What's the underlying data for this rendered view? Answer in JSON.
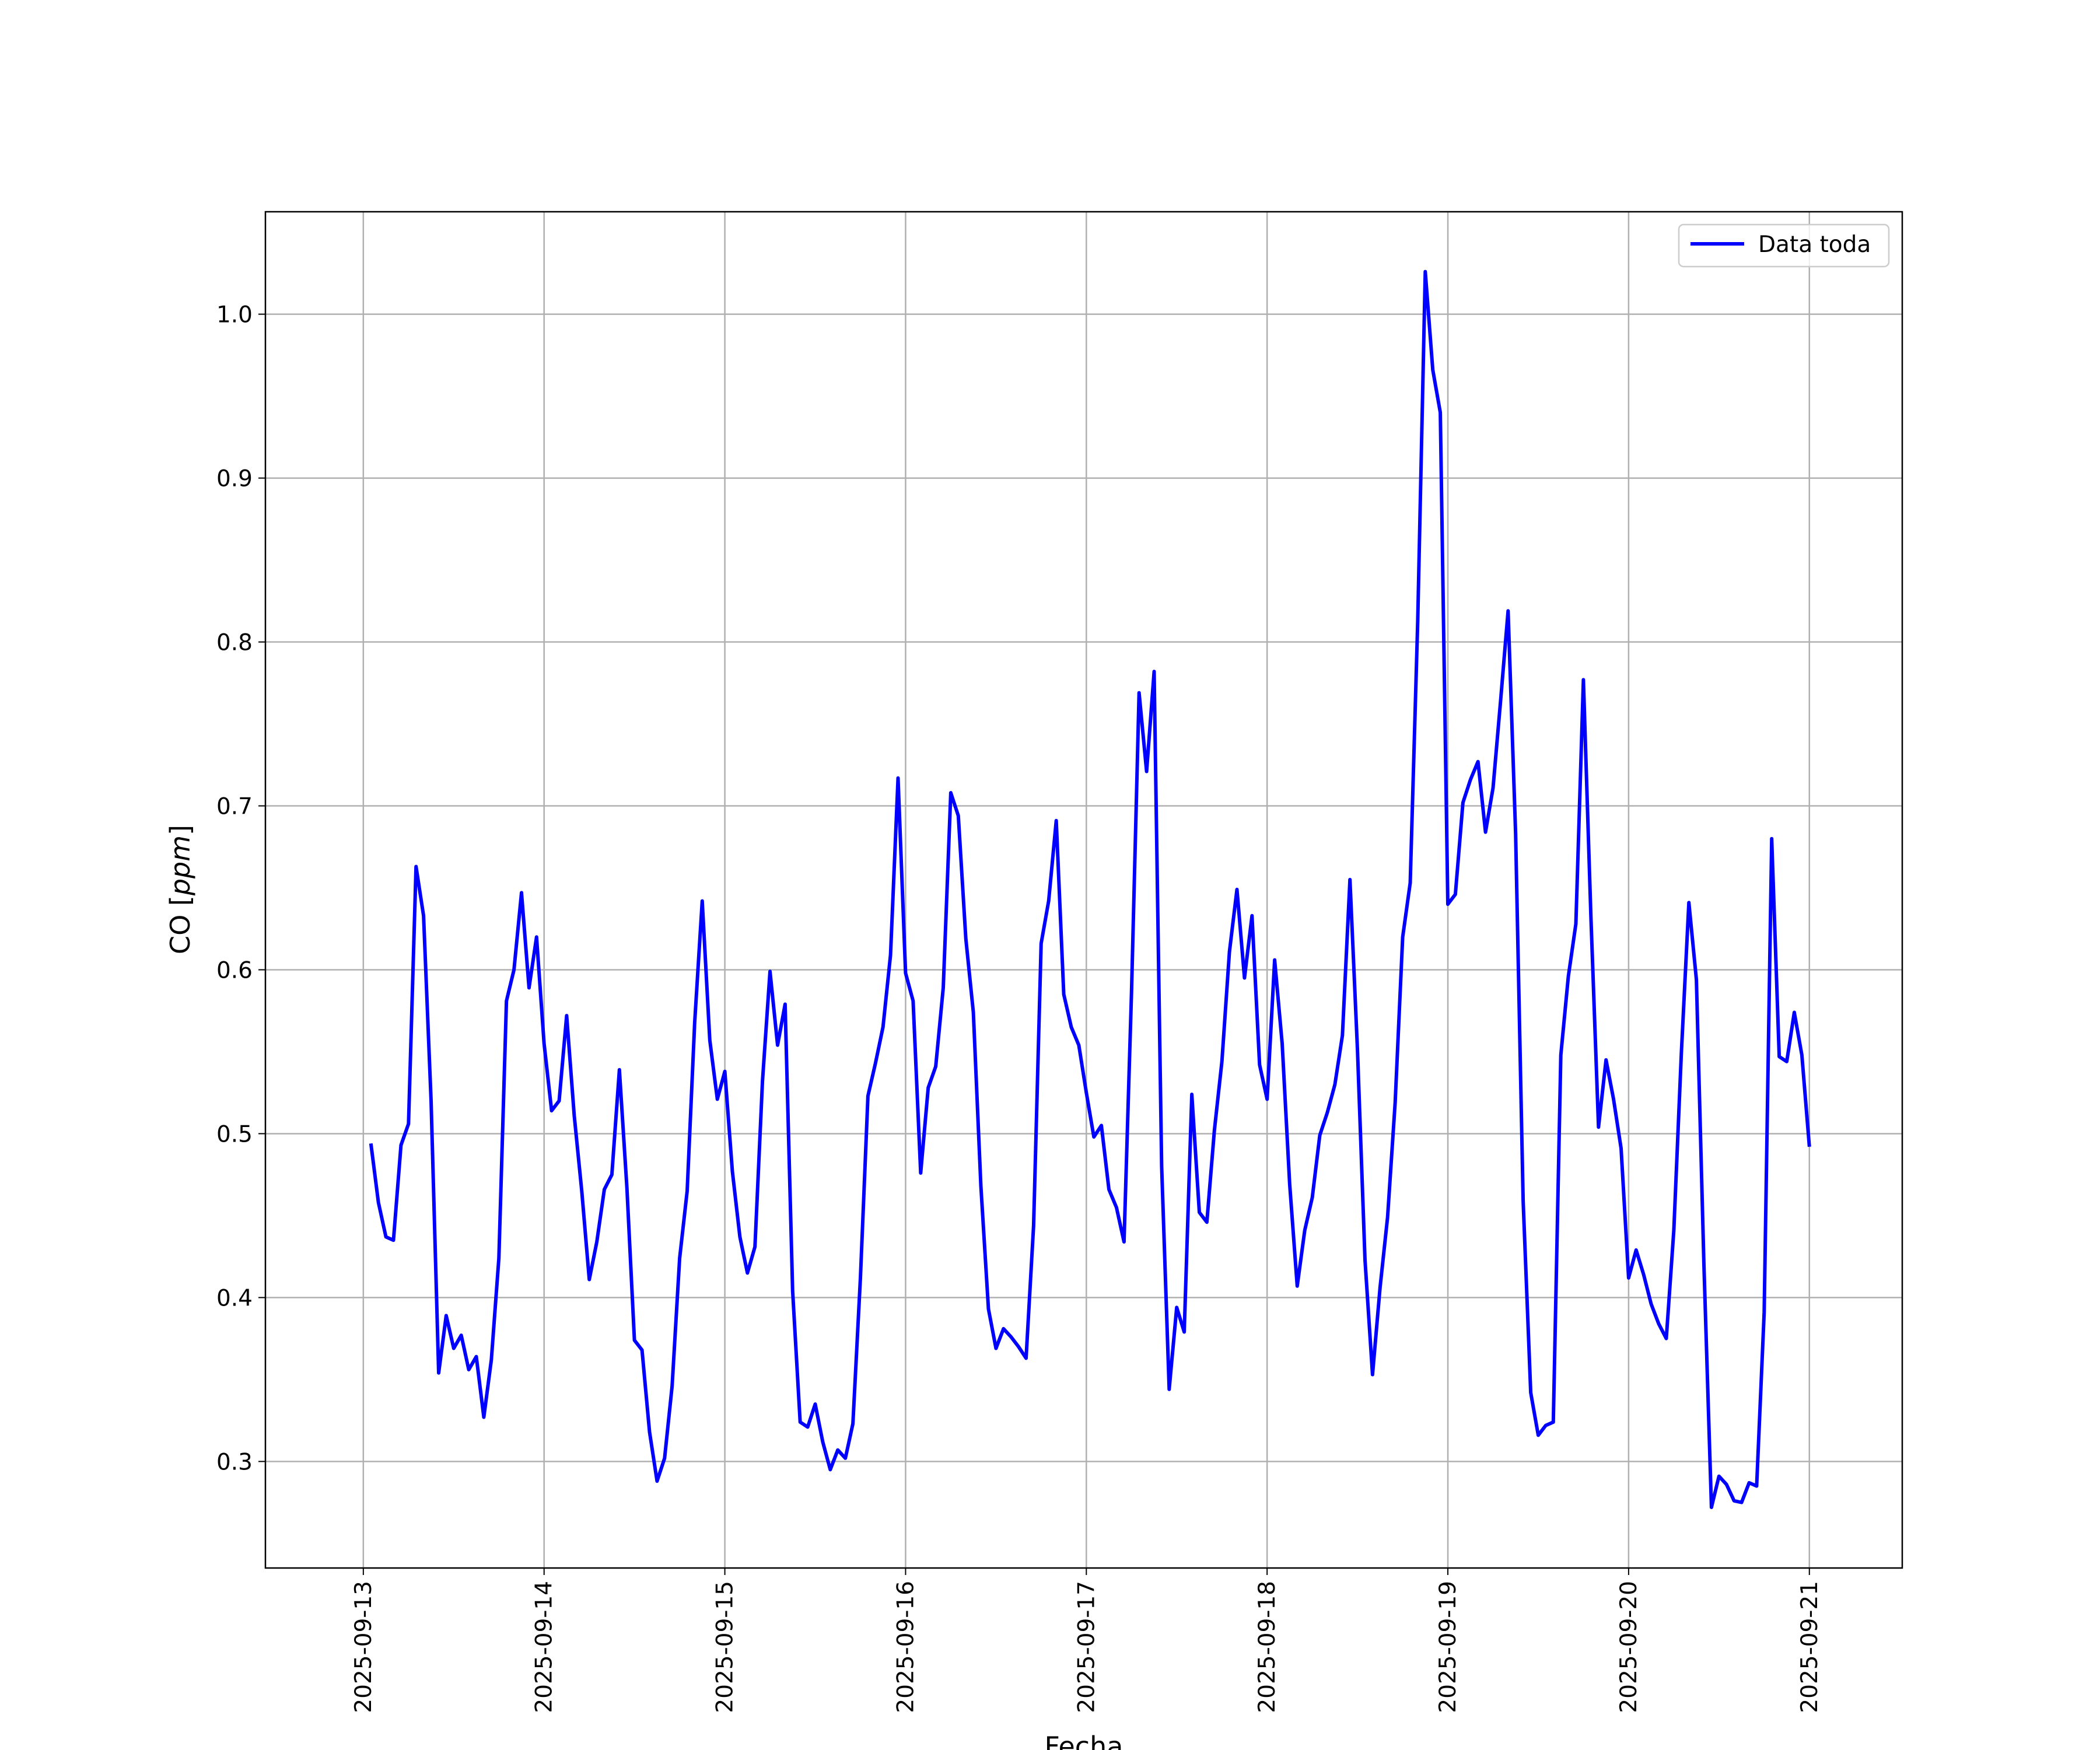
{
  "chart_data": {
    "type": "line",
    "title": "",
    "xlabel": "Fecha",
    "ylabel_main": "CO",
    "ylabel_unit": "ppm",
    "x_ticks": [
      "2025-09-13",
      "2025-09-14",
      "2025-09-15",
      "2025-09-16",
      "2025-09-17",
      "2025-09-18",
      "2025-09-19",
      "2025-09-20",
      "2025-09-21"
    ],
    "y_ticks": [
      "0.3",
      "0.4",
      "0.5",
      "0.6",
      "0.7",
      "0.8",
      "0.9",
      "1.0"
    ],
    "xlim": [
      "2025-09-12 11:00",
      "2025-09-21 12:20"
    ],
    "ylim": [
      0.235,
      1.0625
    ],
    "grid": true,
    "legend_position": "top-right",
    "colors": {
      "series": "#0000ff",
      "grid": "#b0b0b0",
      "axes": "#000000"
    },
    "series": [
      {
        "name": "Data toda",
        "x_start": "2025-09-13 01:00",
        "x_step_hours": 1,
        "values": [
          0.494,
          0.458,
          0.437,
          0.435,
          0.493,
          0.506,
          0.663,
          0.633,
          0.52,
          0.354,
          0.389,
          0.369,
          0.377,
          0.356,
          0.364,
          0.327,
          0.362,
          0.424,
          0.581,
          0.6,
          0.647,
          0.589,
          0.62,
          0.555,
          0.514,
          0.52,
          0.572,
          0.511,
          0.465,
          0.411,
          0.434,
          0.466,
          0.475,
          0.539,
          0.467,
          0.374,
          0.368,
          0.318,
          0.288,
          0.302,
          0.346,
          0.424,
          0.465,
          0.568,
          0.642,
          0.557,
          0.521,
          0.538,
          0.477,
          0.437,
          0.415,
          0.431,
          0.532,
          0.599,
          0.554,
          0.579,
          0.404,
          0.324,
          0.321,
          0.335,
          0.312,
          0.295,
          0.307,
          0.302,
          0.323,
          0.412,
          0.523,
          0.543,
          0.565,
          0.609,
          0.717,
          0.598,
          0.581,
          0.476,
          0.528,
          0.541,
          0.589,
          0.708,
          0.694,
          0.619,
          0.574,
          0.468,
          0.393,
          0.369,
          0.381,
          0.376,
          0.37,
          0.363,
          0.444,
          0.616,
          0.642,
          0.691,
          0.585,
          0.565,
          0.554,
          0.525,
          0.498,
          0.505,
          0.466,
          0.455,
          0.434,
          0.587,
          0.769,
          0.721,
          0.782,
          0.48,
          0.344,
          0.394,
          0.379,
          0.524,
          0.452,
          0.446,
          0.502,
          0.544,
          0.611,
          0.649,
          0.595,
          0.633,
          0.542,
          0.521,
          0.606,
          0.555,
          0.469,
          0.407,
          0.441,
          0.461,
          0.499,
          0.513,
          0.53,
          0.56,
          0.655,
          0.551,
          0.423,
          0.353,
          0.406,
          0.449,
          0.519,
          0.62,
          0.653,
          0.813,
          1.026,
          0.966,
          0.94,
          0.64,
          0.646,
          0.702,
          0.716,
          0.727,
          0.684,
          0.711,
          0.764,
          0.819,
          0.683,
          0.459,
          0.342,
          0.316,
          0.322,
          0.324,
          0.548,
          0.596,
          0.628,
          0.777,
          0.632,
          0.504,
          0.545,
          0.521,
          0.491,
          0.412,
          0.429,
          0.414,
          0.396,
          0.384,
          0.375,
          0.441,
          0.549,
          0.641,
          0.594,
          0.42,
          0.272,
          0.291,
          0.286,
          0.276,
          0.275,
          0.287,
          0.285,
          0.391,
          0.68,
          0.547,
          0.544,
          0.574,
          0.548,
          0.492
        ]
      }
    ]
  }
}
